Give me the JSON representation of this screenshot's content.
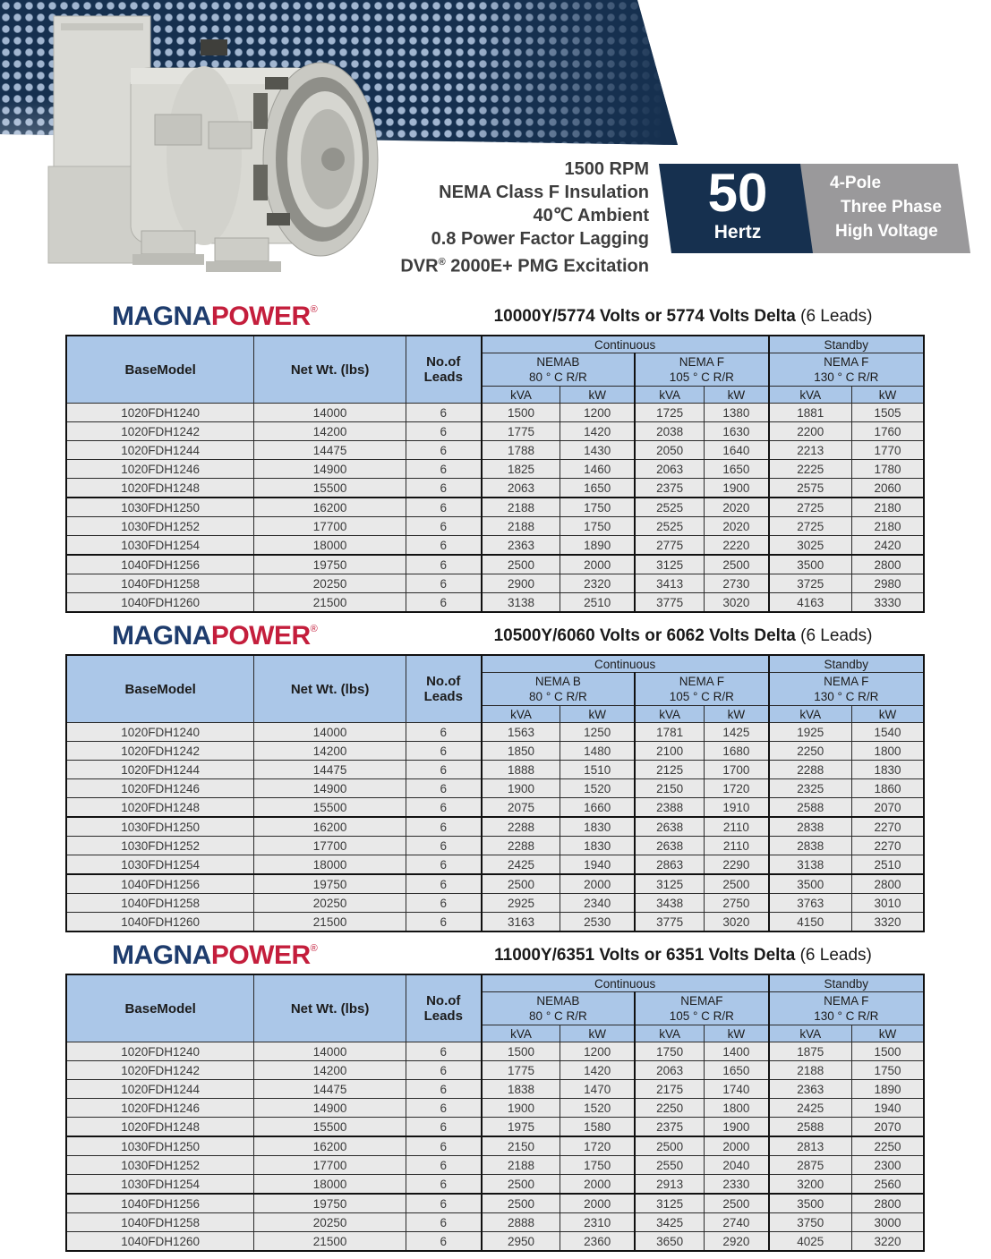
{
  "colors": {
    "navy": "#16304f",
    "logo_navy": "#1e3c6d",
    "logo_red": "#c41e3c",
    "header_blue": "#abc7e8",
    "row_gray": "#e9e9e9",
    "badge_gray": "#9a999b"
  },
  "banner": {
    "spec_lines": [
      "1500 RPM",
      "NEMA Class F Insulation",
      "40℃ Ambient",
      "0.8 Power Factor Lagging"
    ],
    "dvr_line": {
      "pre": "DVR",
      "sup": "®",
      "post": " 2000E+ PMG Excitation"
    },
    "hertz": {
      "value": "50",
      "label": "Hertz"
    },
    "ratings": {
      "lines": [
        "4-Pole",
        "Three Phase",
        "High  Voltage"
      ]
    }
  },
  "logo": {
    "magna": "MAGNA",
    "power": "POWER",
    "reg": "®"
  },
  "table_header": {
    "base_model": "BaseModel",
    "net_wt": "Net Wt. (lbs)",
    "leads_line1": "No.of",
    "leads_line2": "Leads",
    "continuous": "Continuous",
    "standby": "Standby",
    "kva": "kVA",
    "kw": "kW"
  },
  "tables": [
    {
      "title": {
        "volts": "10000Y/5774 Volts or 5774 Volts Delta",
        "leads": " (6 Leads)"
      },
      "groups": [
        {
          "name": "NEMAB",
          "temp": "80 ° C R/R"
        },
        {
          "name": "NEMA F",
          "temp": "105 ° C R/R"
        },
        {
          "name": "NEMA F",
          "temp": "130 ° C R/R"
        }
      ],
      "rows": [
        [
          "1020FDH1240",
          "14000",
          "6",
          "1500",
          "1200",
          "1725",
          "1380",
          "1881",
          "1505"
        ],
        [
          "1020FDH1242",
          "14200",
          "6",
          "1775",
          "1420",
          "2038",
          "1630",
          "2200",
          "1760"
        ],
        [
          "1020FDH1244",
          "14475",
          "6",
          "1788",
          "1430",
          "2050",
          "1640",
          "2213",
          "1770"
        ],
        [
          "1020FDH1246",
          "14900",
          "6",
          "1825",
          "1460",
          "2063",
          "1650",
          "2225",
          "1780"
        ],
        [
          "1020FDH1248",
          "15500",
          "6",
          "2063",
          "1650",
          "2375",
          "1900",
          "2575",
          "2060"
        ],
        [
          "1030FDH1250",
          "16200",
          "6",
          "2188",
          "1750",
          "2525",
          "2020",
          "2725",
          "2180"
        ],
        [
          "1030FDH1252",
          "17700",
          "6",
          "2188",
          "1750",
          "2525",
          "2020",
          "2725",
          "2180"
        ],
        [
          "1030FDH1254",
          "18000",
          "6",
          "2363",
          "1890",
          "2775",
          "2220",
          "3025",
          "2420"
        ],
        [
          "1040FDH1256",
          "19750",
          "6",
          "2500",
          "2000",
          "3125",
          "2500",
          "3500",
          "2800"
        ],
        [
          "1040FDH1258",
          "20250",
          "6",
          "2900",
          "2320",
          "3413",
          "2730",
          "3725",
          "2980"
        ],
        [
          "1040FDH1260",
          "21500",
          "6",
          "3138",
          "2510",
          "3775",
          "3020",
          "4163",
          "3330"
        ]
      ]
    },
    {
      "title": {
        "volts": "10500Y/6060  Volts or 6062 Volts Delta",
        "leads": " (6 Leads)"
      },
      "groups": [
        {
          "name": "NEMA B",
          "temp": "80 ° C R/R"
        },
        {
          "name": "NEMA F",
          "temp": "105 ° C R/R"
        },
        {
          "name": "NEMA F",
          "temp": "130 ° C R/R"
        }
      ],
      "rows": [
        [
          "1020FDH1240",
          "14000",
          "6",
          "1563",
          "1250",
          "1781",
          "1425",
          "1925",
          "1540"
        ],
        [
          "1020FDH1242",
          "14200",
          "6",
          "1850",
          "1480",
          "2100",
          "1680",
          "2250",
          "1800"
        ],
        [
          "1020FDH1244",
          "14475",
          "6",
          "1888",
          "1510",
          "2125",
          "1700",
          "2288",
          "1830"
        ],
        [
          "1020FDH1246",
          "14900",
          "6",
          "1900",
          "1520",
          "2150",
          "1720",
          "2325",
          "1860"
        ],
        [
          "1020FDH1248",
          "15500",
          "6",
          "2075",
          "1660",
          "2388",
          "1910",
          "2588",
          "2070"
        ],
        [
          "1030FDH1250",
          "16200",
          "6",
          "2288",
          "1830",
          "2638",
          "2110",
          "2838",
          "2270"
        ],
        [
          "1030FDH1252",
          "17700",
          "6",
          "2288",
          "1830",
          "2638",
          "2110",
          "2838",
          "2270"
        ],
        [
          "1030FDH1254",
          "18000",
          "6",
          "2425",
          "1940",
          "2863",
          "2290",
          "3138",
          "2510"
        ],
        [
          "1040FDH1256",
          "19750",
          "6",
          "2500",
          "2000",
          "3125",
          "2500",
          "3500",
          "2800"
        ],
        [
          "1040FDH1258",
          "20250",
          "6",
          "2925",
          "2340",
          "3438",
          "2750",
          "3763",
          "3010"
        ],
        [
          "1040FDH1260",
          "21500",
          "6",
          "3163",
          "2530",
          "3775",
          "3020",
          "4150",
          "3320"
        ]
      ]
    },
    {
      "title": {
        "volts": "11000Y/6351  Volts or 6351 Volts Delta",
        "leads": " (6 Leads)"
      },
      "groups": [
        {
          "name": "NEMAB",
          "temp": "80 ° C R/R"
        },
        {
          "name": "NEMAF",
          "temp": "105 ° C R/R"
        },
        {
          "name": "NEMA F",
          "temp": "130 ° C R/R"
        }
      ],
      "rows": [
        [
          "1020FDH1240",
          "14000",
          "6",
          "1500",
          "1200",
          "1750",
          "1400",
          "1875",
          "1500"
        ],
        [
          "1020FDH1242",
          "14200",
          "6",
          "1775",
          "1420",
          "2063",
          "1650",
          "2188",
          "1750"
        ],
        [
          "1020FDH1244",
          "14475",
          "6",
          "1838",
          "1470",
          "2175",
          "1740",
          "2363",
          "1890"
        ],
        [
          "1020FDH1246",
          "14900",
          "6",
          "1900",
          "1520",
          "2250",
          "1800",
          "2425",
          "1940"
        ],
        [
          "1020FDH1248",
          "15500",
          "6",
          "1975",
          "1580",
          "2375",
          "1900",
          "2588",
          "2070"
        ],
        [
          "1030FDH1250",
          "16200",
          "6",
          "2150",
          "1720",
          "2500",
          "2000",
          "2813",
          "2250"
        ],
        [
          "1030FDH1252",
          "17700",
          "6",
          "2188",
          "1750",
          "2550",
          "2040",
          "2875",
          "2300"
        ],
        [
          "1030FDH1254",
          "18000",
          "6",
          "2500",
          "2000",
          "2913",
          "2330",
          "3200",
          "2560"
        ],
        [
          "1040FDH1256",
          "19750",
          "6",
          "2500",
          "2000",
          "3125",
          "2500",
          "3500",
          "2800"
        ],
        [
          "1040FDH1258",
          "20250",
          "6",
          "2888",
          "2310",
          "3425",
          "2740",
          "3750",
          "3000"
        ],
        [
          "1040FDH1260",
          "21500",
          "6",
          "2950",
          "2360",
          "3650",
          "2920",
          "4025",
          "3220"
        ]
      ]
    }
  ]
}
